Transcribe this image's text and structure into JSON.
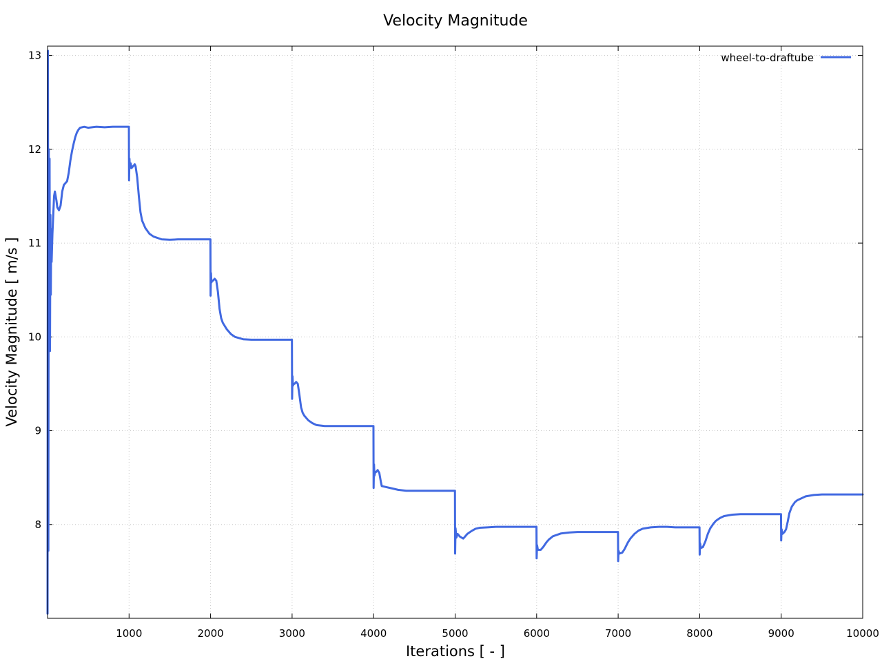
{
  "chart_data": {
    "type": "line",
    "title": "Velocity Magnitude",
    "xlabel": "Iterations [ - ]",
    "ylabel": "Velocity Magnitude [ m/s ]",
    "xlim": [
      0,
      10000
    ],
    "ylim": [
      7.0,
      13.1
    ],
    "xticks": [
      1000,
      2000,
      3000,
      4000,
      5000,
      6000,
      7000,
      8000,
      9000,
      10000
    ],
    "yticks": [
      8,
      9,
      10,
      11,
      12,
      13
    ],
    "grid": true,
    "legend_position": "top-right",
    "series": [
      {
        "name": "wheel-to-draftube",
        "color": "#4169e1",
        "points": [
          [
            0,
            7.05
          ],
          [
            5,
            13.05
          ],
          [
            10,
            7.72
          ],
          [
            15,
            12.0
          ],
          [
            20,
            10.0
          ],
          [
            25,
            11.9
          ],
          [
            30,
            9.85
          ],
          [
            35,
            11.3
          ],
          [
            40,
            10.45
          ],
          [
            45,
            11.15
          ],
          [
            50,
            10.8
          ],
          [
            60,
            11.1
          ],
          [
            70,
            11.3
          ],
          [
            80,
            11.5
          ],
          [
            90,
            11.55
          ],
          [
            100,
            11.5
          ],
          [
            110,
            11.45
          ],
          [
            120,
            11.38
          ],
          [
            140,
            11.35
          ],
          [
            160,
            11.4
          ],
          [
            180,
            11.55
          ],
          [
            200,
            11.62
          ],
          [
            220,
            11.64
          ],
          [
            240,
            11.66
          ],
          [
            260,
            11.75
          ],
          [
            280,
            11.88
          ],
          [
            300,
            11.98
          ],
          [
            320,
            12.06
          ],
          [
            340,
            12.13
          ],
          [
            360,
            12.18
          ],
          [
            380,
            12.21
          ],
          [
            400,
            12.23
          ],
          [
            450,
            12.24
          ],
          [
            500,
            12.23
          ],
          [
            600,
            12.24
          ],
          [
            700,
            12.235
          ],
          [
            800,
            12.24
          ],
          [
            900,
            12.24
          ],
          [
            998,
            12.24
          ],
          [
            1000,
            11.67
          ],
          [
            1005,
            11.9
          ],
          [
            1010,
            11.8
          ],
          [
            1020,
            11.85
          ],
          [
            1030,
            11.8
          ],
          [
            1050,
            11.82
          ],
          [
            1070,
            11.84
          ],
          [
            1080,
            11.82
          ],
          [
            1100,
            11.7
          ],
          [
            1120,
            11.5
          ],
          [
            1140,
            11.33
          ],
          [
            1160,
            11.24
          ],
          [
            1200,
            11.16
          ],
          [
            1250,
            11.1
          ],
          [
            1300,
            11.07
          ],
          [
            1400,
            11.04
          ],
          [
            1500,
            11.035
          ],
          [
            1600,
            11.04
          ],
          [
            1700,
            11.04
          ],
          [
            1800,
            11.04
          ],
          [
            1900,
            11.04
          ],
          [
            1998,
            11.04
          ],
          [
            2000,
            10.44
          ],
          [
            2005,
            10.68
          ],
          [
            2010,
            10.58
          ],
          [
            2020,
            10.6
          ],
          [
            2030,
            10.6
          ],
          [
            2050,
            10.62
          ],
          [
            2070,
            10.6
          ],
          [
            2090,
            10.48
          ],
          [
            2110,
            10.3
          ],
          [
            2130,
            10.2
          ],
          [
            2150,
            10.15
          ],
          [
            2200,
            10.08
          ],
          [
            2250,
            10.03
          ],
          [
            2300,
            10.0
          ],
          [
            2400,
            9.975
          ],
          [
            2500,
            9.97
          ],
          [
            2600,
            9.97
          ],
          [
            2700,
            9.97
          ],
          [
            2800,
            9.97
          ],
          [
            2900,
            9.97
          ],
          [
            2998,
            9.97
          ],
          [
            3000,
            9.34
          ],
          [
            3005,
            9.58
          ],
          [
            3010,
            9.48
          ],
          [
            3020,
            9.5
          ],
          [
            3030,
            9.5
          ],
          [
            3050,
            9.52
          ],
          [
            3070,
            9.5
          ],
          [
            3090,
            9.38
          ],
          [
            3110,
            9.25
          ],
          [
            3130,
            9.19
          ],
          [
            3150,
            9.16
          ],
          [
            3200,
            9.11
          ],
          [
            3250,
            9.08
          ],
          [
            3300,
            9.06
          ],
          [
            3400,
            9.05
          ],
          [
            3500,
            9.05
          ],
          [
            3600,
            9.05
          ],
          [
            3700,
            9.05
          ],
          [
            3800,
            9.05
          ],
          [
            3900,
            9.05
          ],
          [
            3998,
            9.05
          ],
          [
            4000,
            8.39
          ],
          [
            4005,
            8.64
          ],
          [
            4010,
            8.52
          ],
          [
            4020,
            8.56
          ],
          [
            4030,
            8.56
          ],
          [
            4050,
            8.58
          ],
          [
            4070,
            8.55
          ],
          [
            4090,
            8.45
          ],
          [
            4100,
            8.41
          ],
          [
            4150,
            8.4
          ],
          [
            4200,
            8.39
          ],
          [
            4300,
            8.37
          ],
          [
            4400,
            8.36
          ],
          [
            4500,
            8.36
          ],
          [
            4600,
            8.36
          ],
          [
            4700,
            8.36
          ],
          [
            4800,
            8.36
          ],
          [
            4900,
            8.36
          ],
          [
            4998,
            8.36
          ],
          [
            5000,
            7.69
          ],
          [
            5005,
            7.96
          ],
          [
            5015,
            7.86
          ],
          [
            5030,
            7.9
          ],
          [
            5060,
            7.87
          ],
          [
            5100,
            7.85
          ],
          [
            5150,
            7.9
          ],
          [
            5200,
            7.93
          ],
          [
            5250,
            7.955
          ],
          [
            5300,
            7.965
          ],
          [
            5400,
            7.97
          ],
          [
            5500,
            7.975
          ],
          [
            5700,
            7.975
          ],
          [
            5900,
            7.975
          ],
          [
            5998,
            7.975
          ],
          [
            6000,
            7.64
          ],
          [
            6005,
            7.78
          ],
          [
            6015,
            7.73
          ],
          [
            6050,
            7.73
          ],
          [
            6080,
            7.76
          ],
          [
            6120,
            7.81
          ],
          [
            6150,
            7.84
          ],
          [
            6200,
            7.875
          ],
          [
            6300,
            7.905
          ],
          [
            6400,
            7.915
          ],
          [
            6500,
            7.92
          ],
          [
            6700,
            7.92
          ],
          [
            6900,
            7.92
          ],
          [
            6998,
            7.92
          ],
          [
            7000,
            7.61
          ],
          [
            7005,
            7.72
          ],
          [
            7015,
            7.69
          ],
          [
            7050,
            7.7
          ],
          [
            7080,
            7.74
          ],
          [
            7120,
            7.81
          ],
          [
            7150,
            7.85
          ],
          [
            7200,
            7.9
          ],
          [
            7250,
            7.935
          ],
          [
            7300,
            7.955
          ],
          [
            7400,
            7.97
          ],
          [
            7500,
            7.975
          ],
          [
            7600,
            7.975
          ],
          [
            7700,
            7.97
          ],
          [
            7800,
            7.97
          ],
          [
            7900,
            7.97
          ],
          [
            7998,
            7.97
          ],
          [
            8000,
            7.68
          ],
          [
            8005,
            7.8
          ],
          [
            8015,
            7.75
          ],
          [
            8040,
            7.76
          ],
          [
            8070,
            7.82
          ],
          [
            8100,
            7.9
          ],
          [
            8130,
            7.96
          ],
          [
            8170,
            8.01
          ],
          [
            8200,
            8.04
          ],
          [
            8250,
            8.07
          ],
          [
            8300,
            8.09
          ],
          [
            8400,
            8.105
          ],
          [
            8500,
            8.11
          ],
          [
            8700,
            8.11
          ],
          [
            8900,
            8.11
          ],
          [
            8998,
            8.11
          ],
          [
            9000,
            7.83
          ],
          [
            9005,
            7.95
          ],
          [
            9015,
            7.9
          ],
          [
            9040,
            7.92
          ],
          [
            9060,
            7.95
          ],
          [
            9080,
            8.03
          ],
          [
            9100,
            8.12
          ],
          [
            9130,
            8.19
          ],
          [
            9170,
            8.24
          ],
          [
            9200,
            8.26
          ],
          [
            9250,
            8.28
          ],
          [
            9300,
            8.3
          ],
          [
            9400,
            8.315
          ],
          [
            9500,
            8.32
          ],
          [
            9700,
            8.32
          ],
          [
            9900,
            8.32
          ],
          [
            10000,
            8.32
          ]
        ]
      }
    ]
  }
}
